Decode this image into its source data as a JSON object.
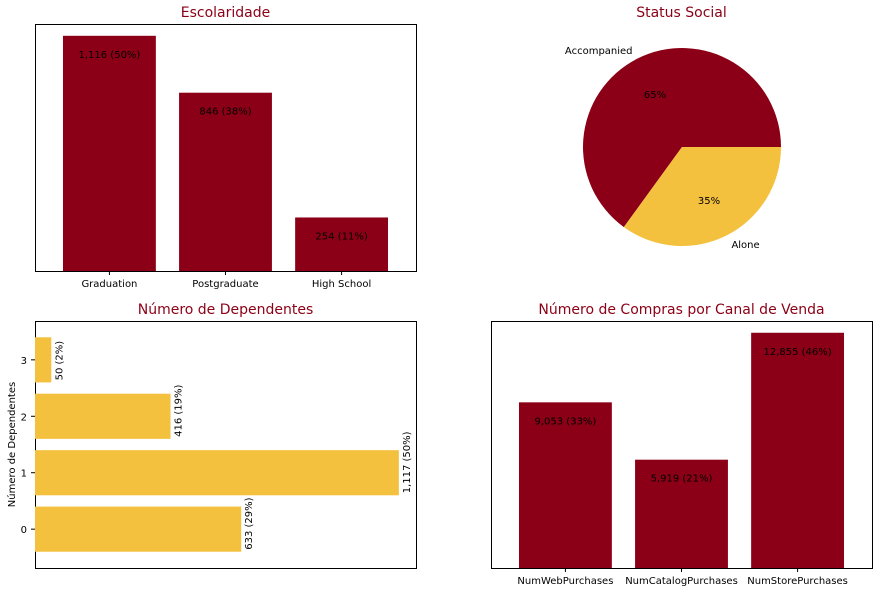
{
  "colors": {
    "bar_red": "#8b0016",
    "bar_yellow": "#f4c13f",
    "title_red": "#8b0016"
  },
  "chart_data": [
    {
      "type": "bar",
      "title": "Escolaridade",
      "categories": [
        "Graduation",
        "Postgraduate",
        "High School"
      ],
      "values": [
        1116,
        846,
        254
      ],
      "labels": [
        "1,116 (50%)",
        "846 (38%)",
        "254 (11%)"
      ],
      "ylim": [
        0,
        1172
      ],
      "grid": false
    },
    {
      "type": "pie",
      "title": "Status Social",
      "categories": [
        "Accompanied",
        "Alone"
      ],
      "values": [
        65,
        35
      ],
      "labels": [
        "65%",
        "35%"
      ]
    },
    {
      "type": "bar",
      "orientation": "horizontal",
      "title": "Número de Dependentes",
      "ylabel": "Número de Dependentes",
      "categories": [
        "0",
        "1",
        "2",
        "3"
      ],
      "values": [
        633,
        1117,
        416,
        50
      ],
      "labels": [
        "633 (29%)",
        "1,117 (50%)",
        "416 (19%)",
        "50 (2%)"
      ],
      "xlim": [
        0,
        1117
      ],
      "grid": false
    },
    {
      "type": "bar",
      "title": "Número de Compras por Canal de Venda",
      "categories": [
        "NumWebPurchases",
        "NumCatalogPurchases",
        "NumStorePurchases"
      ],
      "values": [
        9053,
        5919,
        12855
      ],
      "labels": [
        "9,053 (33%)",
        "5,919 (21%)",
        "12,855 (46%)"
      ],
      "ylim": [
        0,
        13498
      ],
      "grid": false
    }
  ]
}
